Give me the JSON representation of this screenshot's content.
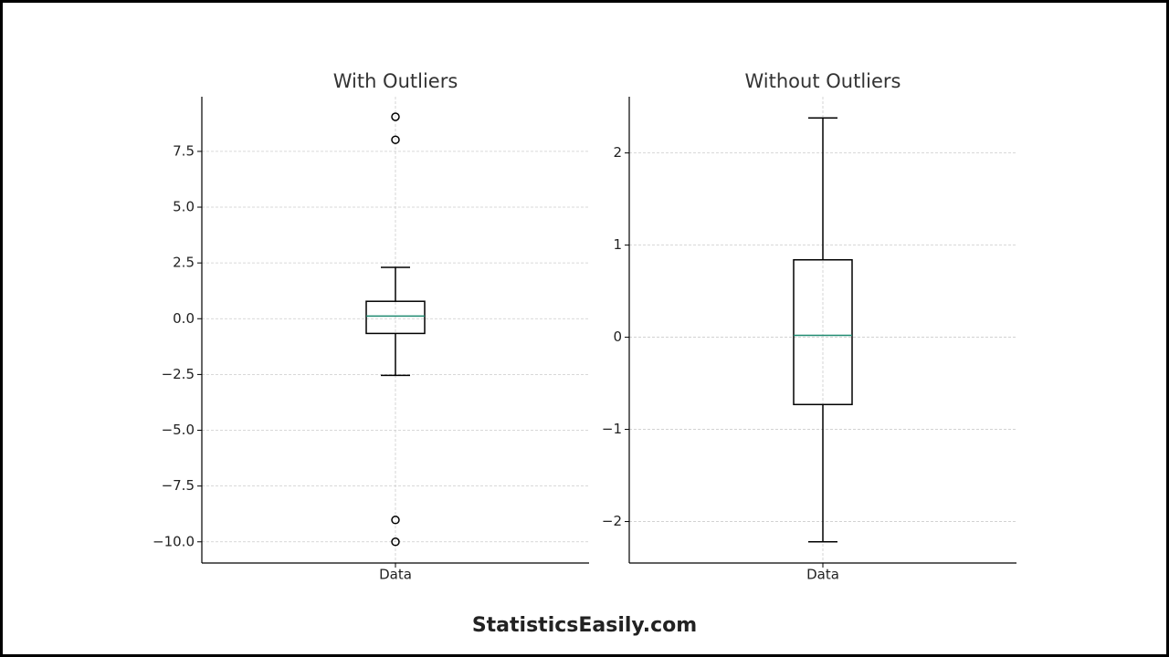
{
  "chart_data": [
    {
      "type": "box",
      "title": "With Outliers",
      "categories": [
        "Data"
      ],
      "boxes": [
        {
          "low": -2.54,
          "q1": -0.66,
          "median": 0.12,
          "q3": 0.78,
          "high": 2.3,
          "outliers": [
            9.05,
            8.02,
            -9.02,
            -10.0
          ]
        }
      ],
      "box_color": "#000000",
      "median_color": "#1f8a70",
      "ylim": [
        -10.95,
        9.95
      ],
      "yticks": [
        {
          "value": -10,
          "label": "−10.0"
        },
        {
          "value": -7.5,
          "label": "−7.5"
        },
        {
          "value": -5,
          "label": "−5.0"
        },
        {
          "value": -2.5,
          "label": "−2.5"
        },
        {
          "value": 0,
          "label": "0.0"
        },
        2.5,
        {
          "value": 5,
          "label": "5.0"
        },
        7.5
      ],
      "grid": true
    },
    {
      "type": "box",
      "title": "Without Outliers",
      "categories": [
        "Data"
      ],
      "boxes": [
        {
          "low": -2.22,
          "q1": -0.73,
          "median": 0.02,
          "q3": 0.84,
          "high": 2.38,
          "outliers": []
        }
      ],
      "box_color": "#000000",
      "median_color": "#1f8a70",
      "ylim": [
        -2.45,
        2.61
      ],
      "yticks": [
        {
          "value": -2,
          "label": "−2"
        },
        {
          "value": -1,
          "label": "−1"
        },
        0,
        1,
        2
      ],
      "grid": true
    }
  ],
  "footer": "StatisticsEasily.com"
}
